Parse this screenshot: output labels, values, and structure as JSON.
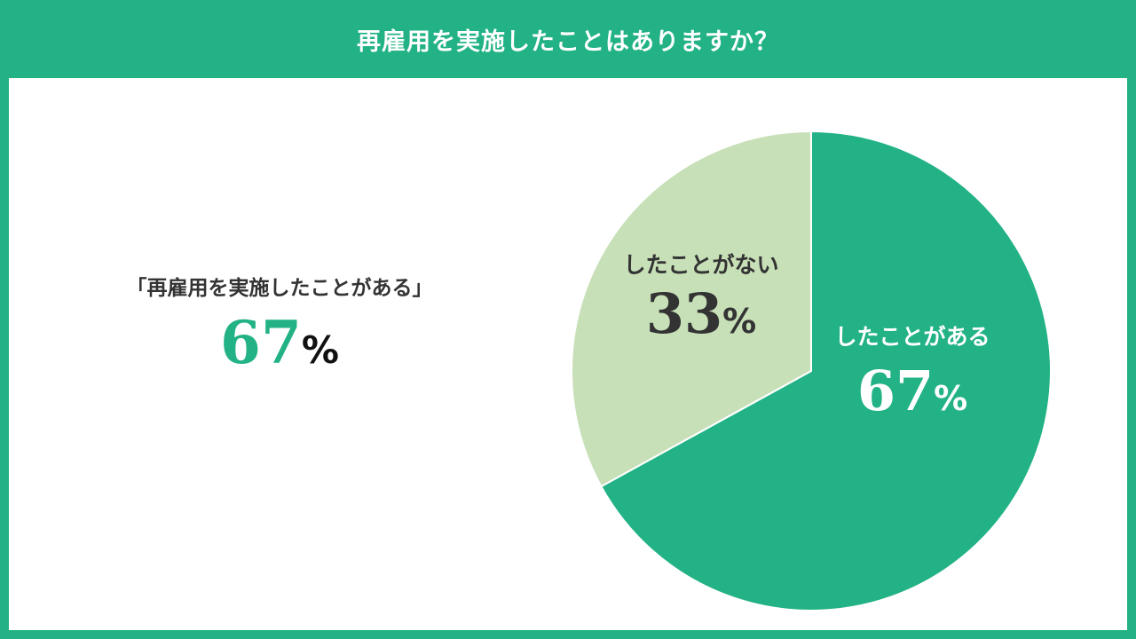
{
  "header": {
    "title": "再雇用を実施したことはありますか？"
  },
  "summary": {
    "label": "「再雇用を実施したことがある」",
    "value": "67",
    "unit": "%"
  },
  "colors": {
    "accent": "#22b285",
    "light": "#c7e0b8",
    "dark_text": "#333333"
  },
  "chart_data": {
    "type": "pie",
    "title": "再雇用を実施したことはありますか？",
    "unit": "%",
    "slices": [
      {
        "label": "したことがある",
        "value": 67,
        "display": "67",
        "color": "#22b285",
        "label_color": "#ffffff"
      },
      {
        "label": "したことがない",
        "value": 33,
        "display": "33",
        "color": "#c7e0b8",
        "label_color": "#333333"
      }
    ],
    "legend": "none"
  }
}
